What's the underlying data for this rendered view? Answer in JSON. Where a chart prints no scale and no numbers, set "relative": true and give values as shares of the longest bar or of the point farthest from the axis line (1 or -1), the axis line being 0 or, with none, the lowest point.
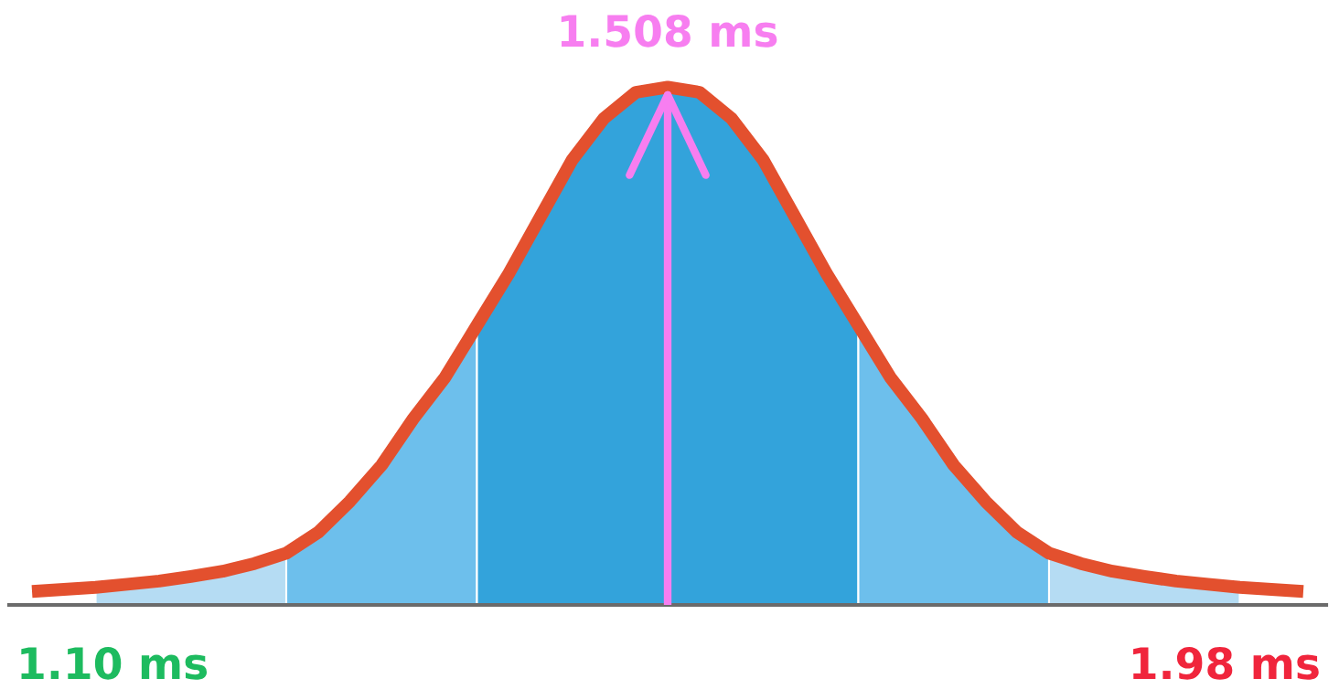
{
  "chart_data": {
    "type": "area",
    "relative": true,
    "categories": [
      null,
      null,
      null,
      null,
      null,
      null,
      null,
      null,
      null,
      null,
      null,
      null,
      null,
      null,
      null,
      null,
      null,
      null,
      null,
      null,
      null,
      null,
      null,
      null,
      null,
      null,
      null,
      null,
      null,
      null,
      null,
      null,
      null,
      null,
      null,
      null,
      null,
      null,
      null,
      null,
      null
    ],
    "series": [
      {
        "color": "#b5dcf3",
        "values": [
          null,
          null,
          0.034,
          0.04,
          0.046,
          0.055,
          0.065,
          0.08,
          0.1,
          null,
          null,
          null,
          null,
          null,
          null,
          null,
          null,
          null,
          null,
          null,
          null,
          null,
          null,
          null,
          null,
          null,
          null,
          null,
          null,
          null,
          null,
          null,
          null,
          null,
          null,
          null,
          null,
          null,
          null,
          null,
          null
        ]
      },
      {
        "color": "#6dbfec",
        "values": [
          null,
          null,
          null,
          null,
          null,
          null,
          null,
          null,
          0.1,
          0.14,
          0.2,
          0.27,
          0.36,
          0.44,
          0.54,
          null,
          null,
          null,
          null,
          null,
          null,
          null,
          null,
          null,
          null,
          null,
          null,
          null,
          null,
          null,
          null,
          null,
          null,
          null,
          null,
          null,
          null,
          null,
          null,
          null,
          null
        ]
      },
      {
        "color": "#33a3db",
        "values": [
          null,
          null,
          null,
          null,
          null,
          null,
          null,
          null,
          null,
          null,
          null,
          null,
          null,
          null,
          0.54,
          0.64,
          0.75,
          0.86,
          0.94,
          0.99,
          1,
          0.99,
          0.94,
          0.86,
          0.75,
          0.64,
          0.54,
          null,
          null,
          null,
          null,
          null,
          null,
          null,
          null,
          null,
          null,
          null,
          null,
          null,
          null
        ]
      },
      {
        "color": "#6dbfec",
        "values": [
          null,
          null,
          null,
          null,
          null,
          null,
          null,
          null,
          null,
          null,
          null,
          null,
          null,
          null,
          null,
          null,
          null,
          null,
          null,
          null,
          null,
          null,
          null,
          null,
          null,
          null,
          0.54,
          0.44,
          0.36,
          0.27,
          0.2,
          0.14,
          0.1,
          null,
          null,
          null,
          null,
          null,
          null,
          null,
          null
        ]
      },
      {
        "color": "#b5dcf3",
        "values": [
          null,
          null,
          null,
          null,
          null,
          null,
          null,
          null,
          null,
          null,
          null,
          null,
          null,
          null,
          null,
          null,
          null,
          null,
          null,
          null,
          null,
          null,
          null,
          null,
          null,
          null,
          null,
          null,
          null,
          null,
          null,
          null,
          0.1,
          0.08,
          0.065,
          0.055,
          0.046,
          0.04,
          0.034,
          null,
          null
        ]
      },
      {
        "type": "line",
        "color": "#e3502e",
        "values": [
          0.026,
          0.03,
          0.034,
          0.04,
          0.046,
          0.055,
          0.065,
          0.08,
          0.1,
          0.14,
          0.2,
          0.27,
          0.36,
          0.44,
          0.54,
          0.64,
          0.75,
          0.86,
          0.94,
          0.99,
          1,
          0.99,
          0.94,
          0.86,
          0.75,
          0.64,
          0.54,
          0.44,
          0.36,
          0.27,
          0.2,
          0.14,
          0.1,
          0.08,
          0.065,
          0.055,
          0.046,
          0.04,
          0.034,
          0.03,
          0.026
        ]
      }
    ],
    "annotations": [
      "1.508 ms",
      "1.10 ms",
      "1.98 ms"
    ]
  }
}
